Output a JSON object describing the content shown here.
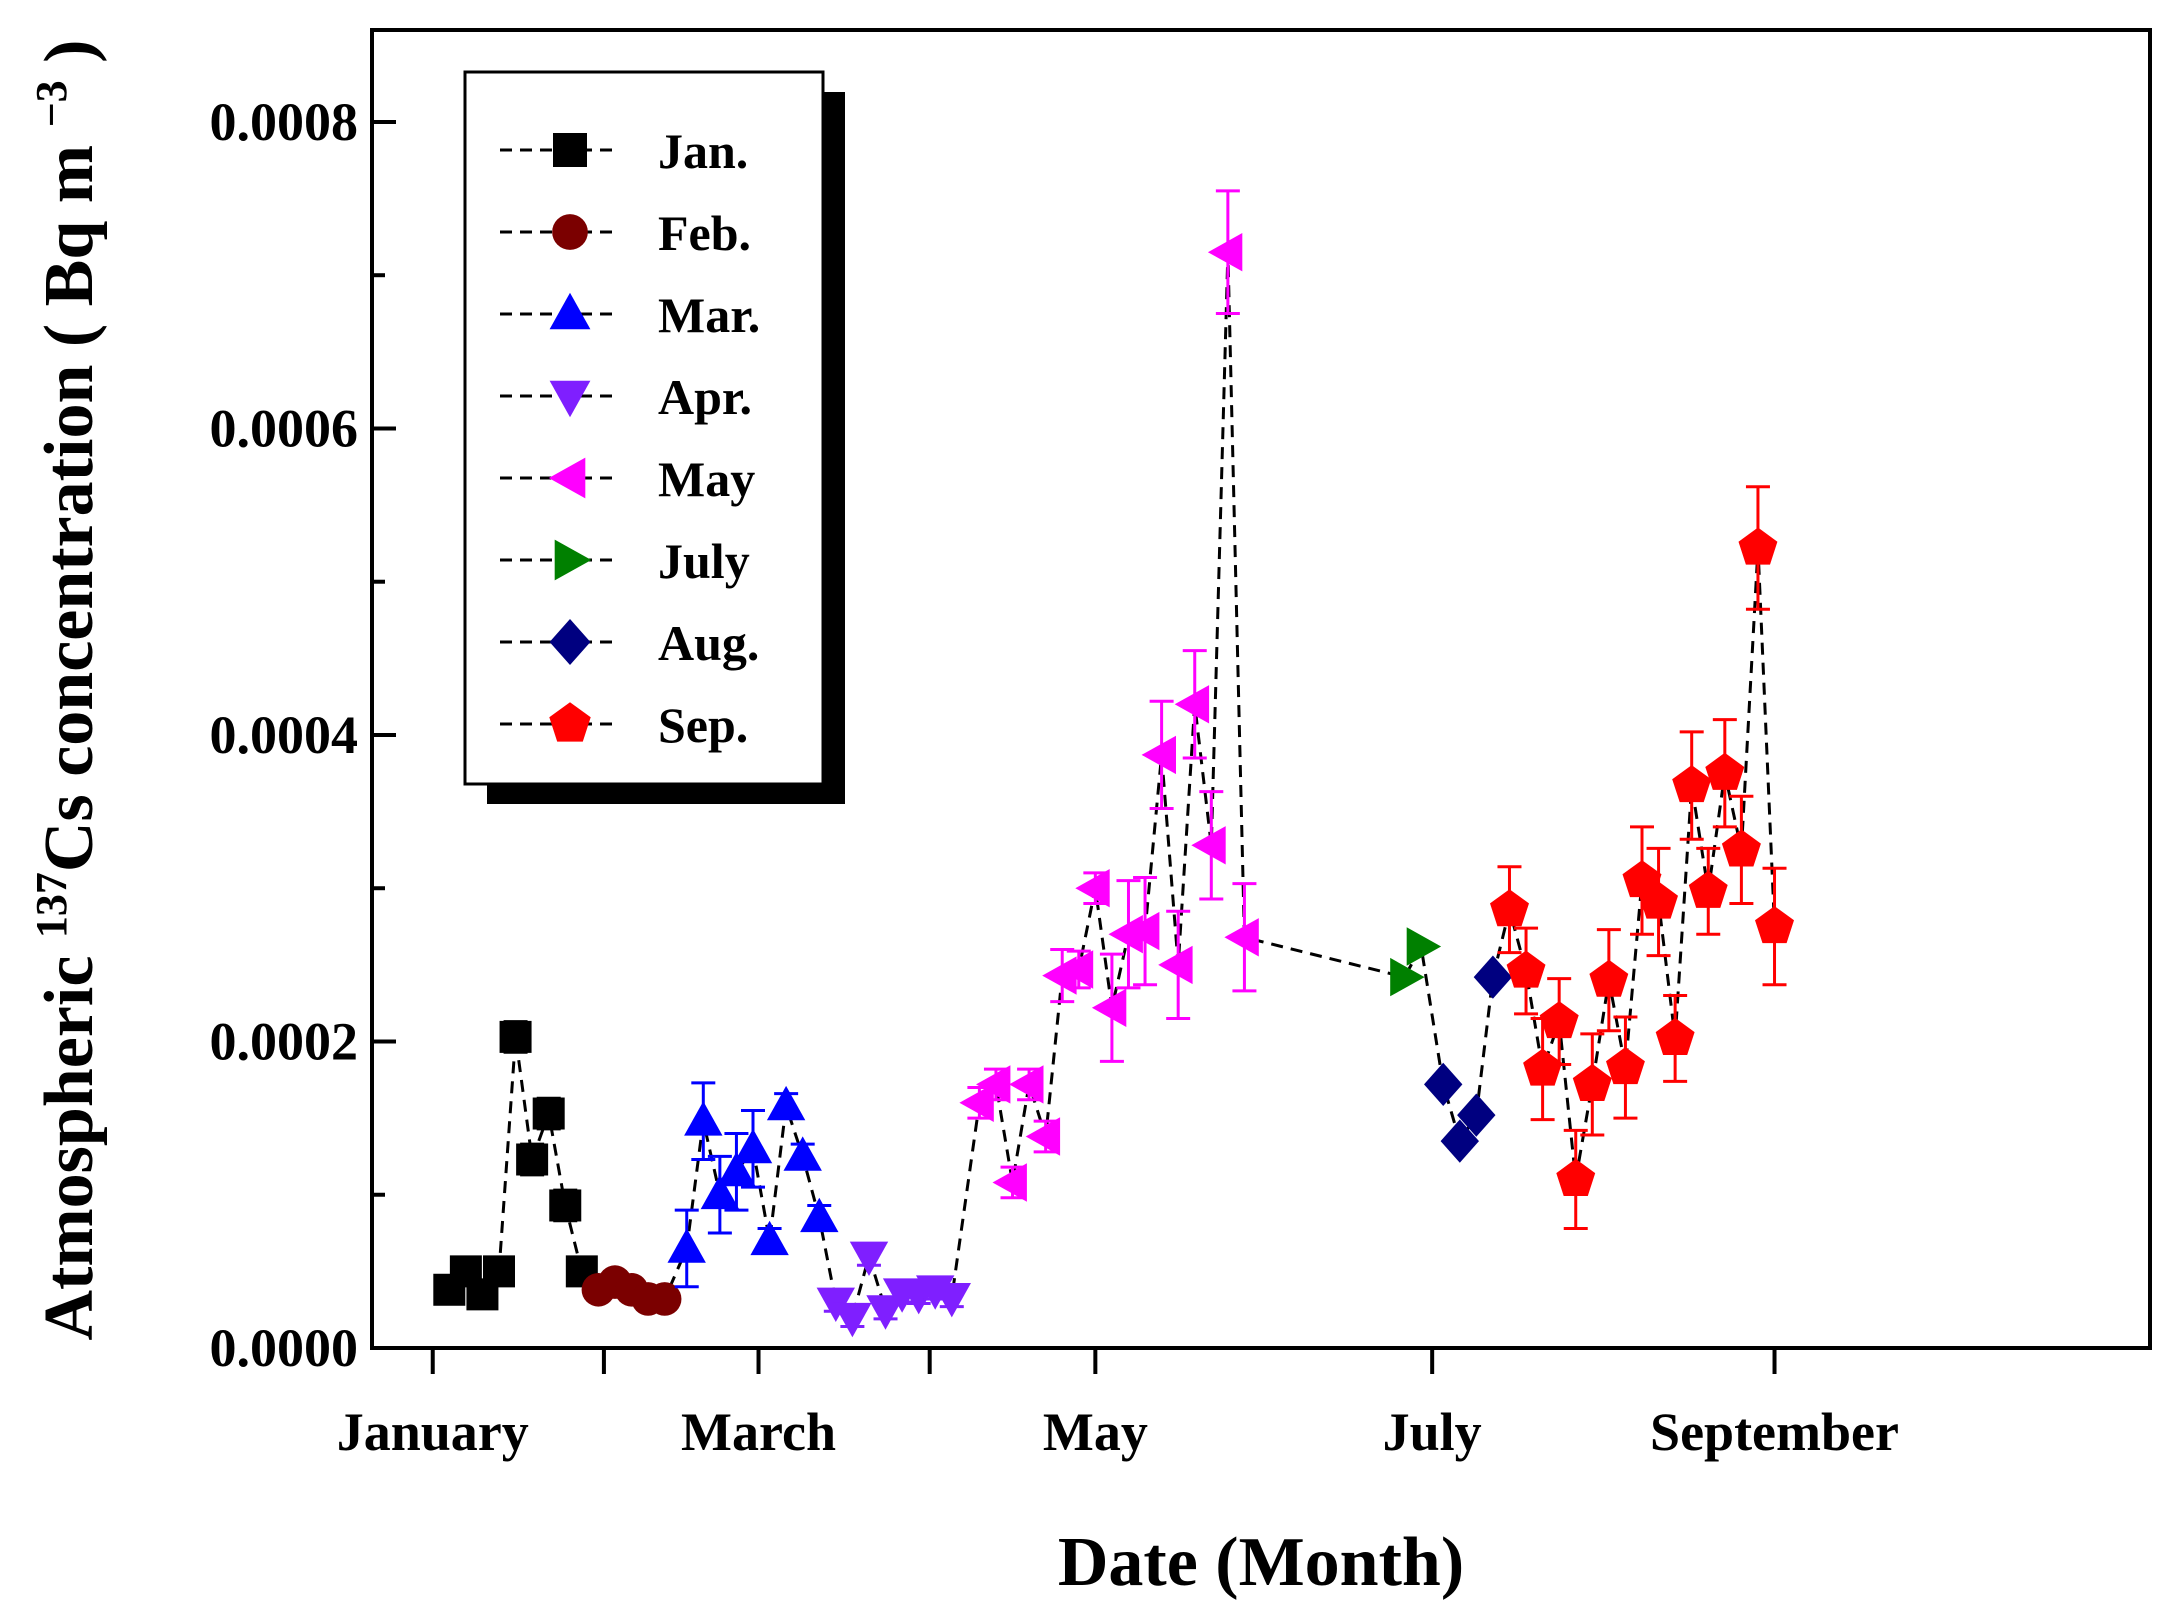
{
  "chart_data": {
    "type": "scatter",
    "xlabel": "Date (Month)",
    "ylabel": {
      "prefix": "Atmospheric ",
      "superscript": "137",
      "main": "Cs concentration",
      "unit_open": "( Bq m",
      "unit_sup": "−3",
      "unit_close": ")"
    },
    "x_range": [
      "2014-12-21",
      "2015-11-08"
    ],
    "y_range": [
      0,
      0.00086
    ],
    "y_ticks": [
      "0.0000",
      "0.0002",
      "0.0004",
      "0.0006",
      "0.0008"
    ],
    "x_ticks": [
      {
        "date": "2015-01-01",
        "label": "January"
      },
      {
        "date": "2015-02-01",
        "label": ""
      },
      {
        "date": "2015-03-01",
        "label": "March"
      },
      {
        "date": "2015-04-01",
        "label": ""
      },
      {
        "date": "2015-05-01",
        "label": "May"
      },
      {
        "date": "2015-07-01",
        "label": "July"
      },
      {
        "date": "2015-09-01",
        "label": "September"
      }
    ],
    "grid": false,
    "legend": "top-left",
    "series": [
      {
        "name": "Jan.",
        "marker": "square",
        "color": "#000000",
        "points": [
          {
            "x": "2015-01-04",
            "y": 3.8e-05
          },
          {
            "x": "2015-01-07",
            "y": 5e-05
          },
          {
            "x": "2015-01-10",
            "y": 3.5e-05
          },
          {
            "x": "2015-01-13",
            "y": 5e-05
          },
          {
            "x": "2015-01-16",
            "y": 0.000203,
            "e": 1e-05
          },
          {
            "x": "2015-01-19",
            "y": 0.000123,
            "e": 1e-05
          },
          {
            "x": "2015-01-22",
            "y": 0.000153,
            "e": 1e-05
          },
          {
            "x": "2015-01-25",
            "y": 9.3e-05,
            "e": 1e-05
          },
          {
            "x": "2015-01-28",
            "y": 5e-05
          }
        ]
      },
      {
        "name": "Feb.",
        "marker": "circle",
        "color": "#7b0000",
        "points": [
          {
            "x": "2015-01-31",
            "y": 3.8e-05
          },
          {
            "x": "2015-02-03",
            "y": 4.3e-05
          },
          {
            "x": "2015-02-06",
            "y": 3.8e-05
          },
          {
            "x": "2015-02-09",
            "y": 3.2e-05
          },
          {
            "x": "2015-02-12",
            "y": 3.2e-05
          }
        ]
      },
      {
        "name": "Mar.",
        "marker": "triangle-up",
        "color": "#0000ff",
        "points": [
          {
            "x": "2015-02-16",
            "y": 6.5e-05,
            "e": 2.5e-05
          },
          {
            "x": "2015-02-19",
            "y": 0.000148,
            "e": 2.5e-05
          },
          {
            "x": "2015-02-22",
            "y": 0.0001,
            "e": 2.5e-05
          },
          {
            "x": "2015-02-25",
            "y": 0.000115,
            "e": 2.5e-05
          },
          {
            "x": "2015-02-28",
            "y": 0.00013,
            "e": 2.5e-05
          },
          {
            "x": "2015-03-03",
            "y": 7e-05,
            "e": 8e-06
          },
          {
            "x": "2015-03-06",
            "y": 0.000158,
            "e": 8e-06
          },
          {
            "x": "2015-03-09",
            "y": 0.000125,
            "e": 8e-06
          },
          {
            "x": "2015-03-12",
            "y": 8.5e-05,
            "e": 8e-06
          }
        ]
      },
      {
        "name": "Apr.",
        "marker": "triangle-down",
        "color": "#7f1fff",
        "points": [
          {
            "x": "2015-03-15",
            "y": 3e-05,
            "e": 6e-06
          },
          {
            "x": "2015-03-18",
            "y": 2e-05,
            "e": 6e-06
          },
          {
            "x": "2015-03-21",
            "y": 6e-05,
            "e": 6e-06
          },
          {
            "x": "2015-03-24",
            "y": 2.5e-05,
            "e": 6e-06
          },
          {
            "x": "2015-03-27",
            "y": 3.6e-05,
            "e": 6e-06
          },
          {
            "x": "2015-03-30",
            "y": 3.5e-05,
            "e": 6e-06
          },
          {
            "x": "2015-04-02",
            "y": 3.8e-05,
            "e": 6e-06
          },
          {
            "x": "2015-04-05",
            "y": 3.3e-05,
            "e": 6e-06
          }
        ]
      },
      {
        "name": "May",
        "marker": "triangle-left",
        "color": "#ff00ff",
        "points": [
          {
            "x": "2015-04-10",
            "y": 0.00016,
            "e": 1e-05
          },
          {
            "x": "2015-04-13",
            "y": 0.000172,
            "e": 1e-05
          },
          {
            "x": "2015-04-16",
            "y": 0.000108,
            "e": 1e-05
          },
          {
            "x": "2015-04-19",
            "y": 0.000172,
            "e": 1e-05
          },
          {
            "x": "2015-04-22",
            "y": 0.000138,
            "e": 1e-05
          },
          {
            "x": "2015-04-25",
            "y": 0.000243,
            "e": 1.7e-05
          },
          {
            "x": "2015-04-28",
            "y": 0.000247,
            "e": 1.2e-05
          },
          {
            "x": "2015-05-01",
            "y": 0.0003,
            "e": 1e-05
          },
          {
            "x": "2015-05-04",
            "y": 0.000222,
            "e": 3.5e-05
          },
          {
            "x": "2015-05-07",
            "y": 0.00027,
            "e": 3.5e-05
          },
          {
            "x": "2015-05-10",
            "y": 0.000272,
            "e": 3.5e-05
          },
          {
            "x": "2015-05-13",
            "y": 0.000387,
            "e": 3.5e-05
          },
          {
            "x": "2015-05-16",
            "y": 0.00025,
            "e": 3.5e-05
          },
          {
            "x": "2015-05-19",
            "y": 0.00042,
            "e": 3.5e-05
          },
          {
            "x": "2015-05-22",
            "y": 0.000328,
            "e": 3.5e-05
          },
          {
            "x": "2015-05-25",
            "y": 0.000715,
            "e": 4e-05
          },
          {
            "x": "2015-05-28",
            "y": 0.000268,
            "e": 3.5e-05
          }
        ]
      },
      {
        "name": "July",
        "marker": "triangle-right",
        "color": "#008000",
        "points": [
          {
            "x": "2015-06-26",
            "y": 0.000242
          },
          {
            "x": "2015-06-29",
            "y": 0.000262
          }
        ]
      },
      {
        "name": "Aug.",
        "marker": "diamond",
        "color": "#000080",
        "points": [
          {
            "x": "2015-07-03",
            "y": 0.000172
          },
          {
            "x": "2015-07-06",
            "y": 0.000135
          },
          {
            "x": "2015-07-09",
            "y": 0.000152
          },
          {
            "x": "2015-07-12",
            "y": 0.000242
          }
        ]
      },
      {
        "name": "Sep.",
        "marker": "pentagon",
        "color": "#ff0000",
        "points": [
          {
            "x": "2015-07-15",
            "y": 0.000286,
            "e": 2.8e-05
          },
          {
            "x": "2015-07-18",
            "y": 0.000246,
            "e": 2.8e-05
          },
          {
            "x": "2015-07-21",
            "y": 0.000182,
            "e": 3.3e-05
          },
          {
            "x": "2015-07-24",
            "y": 0.000213,
            "e": 2.8e-05
          },
          {
            "x": "2015-07-27",
            "y": 0.00011,
            "e": 3.2e-05
          },
          {
            "x": "2015-07-30",
            "y": 0.000172,
            "e": 3.3e-05
          },
          {
            "x": "2015-08-02",
            "y": 0.00024,
            "e": 3.3e-05
          },
          {
            "x": "2015-08-05",
            "y": 0.000183,
            "e": 3.3e-05
          },
          {
            "x": "2015-08-08",
            "y": 0.000305,
            "e": 3.5e-05
          },
          {
            "x": "2015-08-11",
            "y": 0.000291,
            "e": 3.5e-05
          },
          {
            "x": "2015-08-14",
            "y": 0.000202,
            "e": 2.8e-05
          },
          {
            "x": "2015-08-17",
            "y": 0.000367,
            "e": 3.5e-05
          },
          {
            "x": "2015-08-20",
            "y": 0.000298,
            "e": 2.8e-05
          },
          {
            "x": "2015-08-23",
            "y": 0.000375,
            "e": 3.5e-05
          },
          {
            "x": "2015-08-26",
            "y": 0.000325,
            "e": 3.5e-05
          },
          {
            "x": "2015-08-29",
            "y": 0.000522,
            "e": 4e-05
          },
          {
            "x": "2015-09-01",
            "y": 0.000275,
            "e": 3.8e-05
          }
        ]
      }
    ]
  }
}
